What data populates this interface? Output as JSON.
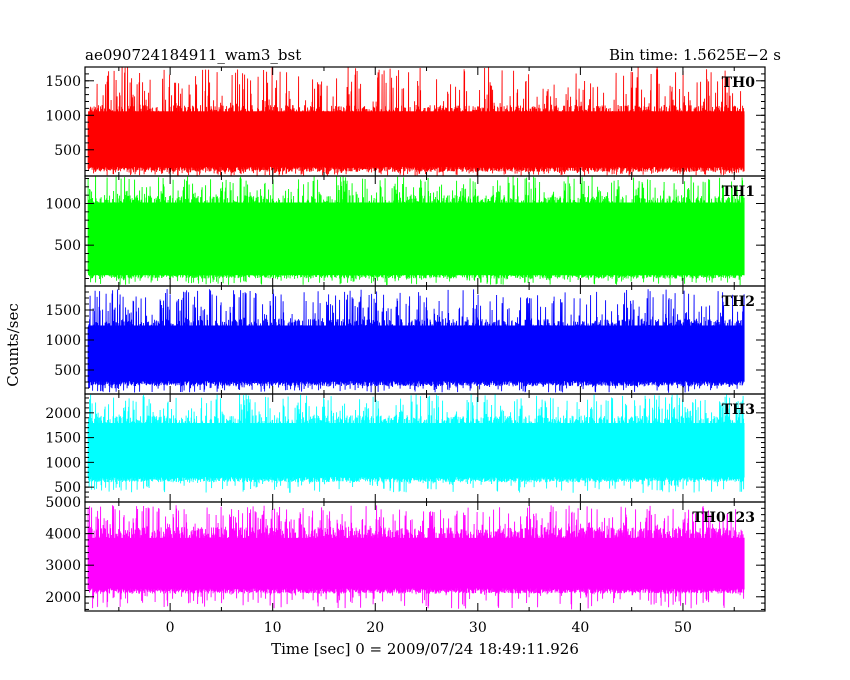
{
  "header": {
    "left": "ae090724184911_wam3_bst",
    "right": "Bin time: 1.5625E−2 s"
  },
  "chart_data": {
    "type": "line",
    "x": {
      "label": "Time [sec] 0 = 2009/07/24 18:49:11.926",
      "range": [
        -8.3,
        58
      ],
      "data_range": [
        -8,
        56
      ],
      "bin_time": 0.015625,
      "ticks": [
        0,
        10,
        20,
        30,
        40,
        50
      ],
      "tick_labels": [
        "0",
        "10",
        "20",
        "30",
        "40",
        "50"
      ]
    },
    "ylabel": "Counts/sec",
    "grid": false,
    "panels": [
      {
        "name": "TH0",
        "color": "#ff0000",
        "ylim": [
          120,
          1700
        ],
        "ticks": [
          500,
          1000,
          1500
        ],
        "tick_labels": [
          "500",
          "1000",
          "1500"
        ],
        "baseline": 125,
        "low": 180,
        "typical_high": 1150,
        "spike_max": 1700
      },
      {
        "name": "TH1",
        "color": "#00ff00",
        "ylim": [
          10,
          1330
        ],
        "ticks": [
          500,
          1000
        ],
        "tick_labels": [
          "500",
          "1000"
        ],
        "baseline": 20,
        "low": 100,
        "typical_high": 1100,
        "spike_max": 1330
      },
      {
        "name": "TH2",
        "color": "#0000ff",
        "ylim": [
          100,
          1900
        ],
        "ticks": [
          500,
          1000,
          1500
        ],
        "tick_labels": [
          "500",
          "1000",
          "1500"
        ],
        "baseline": 120,
        "low": 230,
        "typical_high": 1350,
        "spike_max": 1850
      },
      {
        "name": "TH3",
        "color": "#00ffff",
        "ylim": [
          200,
          2380
        ],
        "ticks": [
          500,
          1000,
          1500,
          2000
        ],
        "tick_labels": [
          "500",
          "1000",
          "1500",
          "2000"
        ],
        "baseline": 380,
        "low": 600,
        "typical_high": 1950,
        "spike_max": 2380
      },
      {
        "name": "TH0123",
        "color": "#ff00ff",
        "ylim": [
          1550,
          5000
        ],
        "ticks": [
          2000,
          3000,
          4000,
          5000
        ],
        "tick_labels": [
          "2000",
          "3000",
          "4000",
          "5000"
        ],
        "baseline": 1600,
        "low": 2100,
        "typical_high": 4200,
        "spike_max": 4900
      }
    ]
  }
}
